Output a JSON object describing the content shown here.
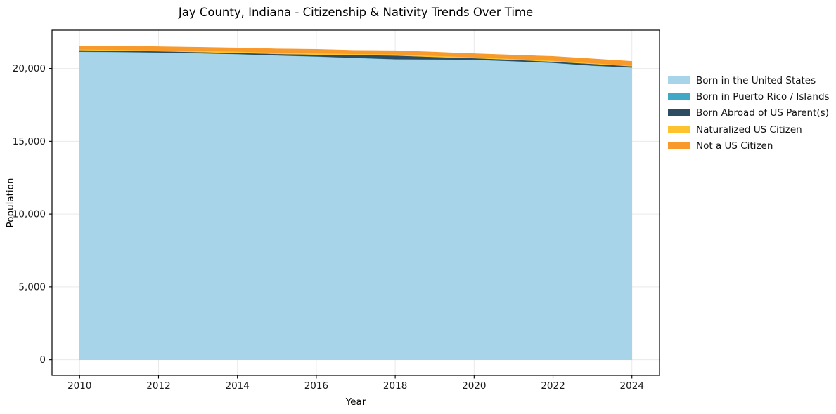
{
  "chart_data": {
    "type": "area",
    "stacked": true,
    "title": "Jay County, Indiana - Citizenship & Nativity Trends Over Time",
    "xlabel": "Year",
    "ylabel": "Population",
    "x": [
      2010,
      2011,
      2012,
      2013,
      2014,
      2015,
      2016,
      2017,
      2018,
      2019,
      2020,
      2021,
      2022,
      2023,
      2024
    ],
    "series": [
      {
        "name": "Born in the United States",
        "color": "#a7d4e9",
        "values": [
          21150,
          21130,
          21100,
          21050,
          20990,
          20900,
          20820,
          20725,
          20630,
          20620,
          20600,
          20500,
          20390,
          20195,
          20070
        ]
      },
      {
        "name": "Born in Puerto Rico / Islands",
        "color": "#3ea8c6",
        "values": [
          15,
          15,
          10,
          10,
          10,
          10,
          15,
          15,
          20,
          15,
          10,
          10,
          10,
          15,
          10
        ]
      },
      {
        "name": "Born Abroad of US Parent(s)",
        "color": "#2b4c61",
        "values": [
          95,
          90,
          75,
          70,
          75,
          90,
          120,
          190,
          240,
          160,
          100,
          90,
          70,
          110,
          75
        ]
      },
      {
        "name": "Naturalized US Citizen",
        "color": "#fcc32e",
        "values": [
          50,
          55,
          70,
          85,
          95,
          95,
          95,
          75,
          95,
          80,
          70,
          65,
          70,
          55,
          45
        ]
      },
      {
        "name": "Not a US Citizen",
        "color": "#f8992b",
        "values": [
          240,
          245,
          245,
          245,
          240,
          250,
          265,
          240,
          240,
          250,
          240,
          260,
          290,
          290,
          290
        ]
      }
    ],
    "xticks": [
      2010,
      2012,
      2014,
      2016,
      2018,
      2020,
      2022,
      2024
    ],
    "yticks": [
      0,
      5000,
      10000,
      15000,
      20000
    ],
    "xlim": [
      2009.3,
      2024.7
    ],
    "ylim": [
      -1077,
      22630
    ],
    "grid": true,
    "legend_position": "right-outside",
    "colors": {
      "background": "#ffffff",
      "grid": "#e9e9e9",
      "spine": "#000000",
      "tick_text": "#1a1a1a"
    }
  }
}
